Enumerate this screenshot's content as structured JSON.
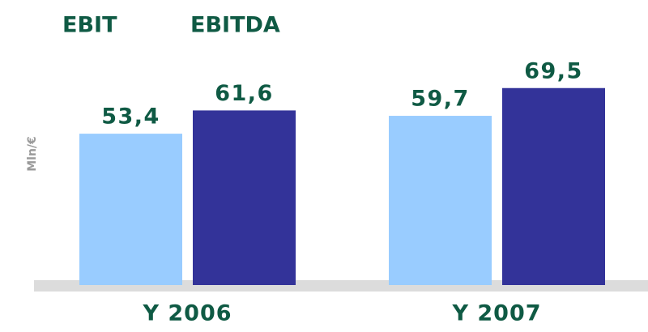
{
  "chart_data": {
    "type": "bar",
    "y_label": "Mln/€",
    "categories": [
      "Y 2006",
      "Y 2007"
    ],
    "series": [
      {
        "name": "EBIT",
        "color": "#99ccff",
        "values": [
          53.4,
          59.7
        ],
        "value_labels": [
          "53,4",
          "59,7"
        ]
      },
      {
        "name": "EBITDA",
        "color": "#333399",
        "values": [
          61.6,
          69.5
        ],
        "value_labels": [
          "61,6",
          "69,5"
        ]
      }
    ],
    "ylim": [
      0,
      100
    ]
  }
}
